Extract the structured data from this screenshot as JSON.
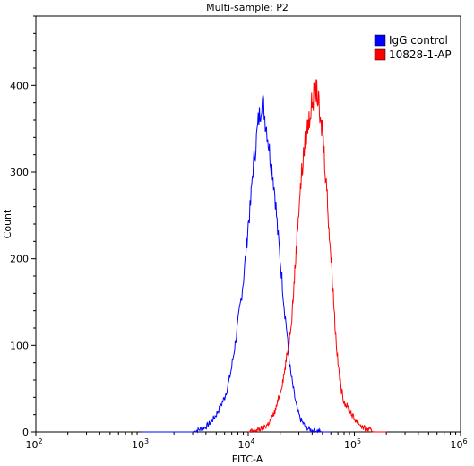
{
  "chart_data": {
    "type": "line",
    "title": "Multi-sample: P2",
    "xlabel": "FITC-A",
    "ylabel": "Count",
    "x_scale": "log",
    "xlim": [
      100,
      1000000
    ],
    "ylim": [
      0,
      480
    ],
    "x_ticks": [
      {
        "value": 100,
        "base": "10",
        "exp": "2"
      },
      {
        "value": 1000,
        "base": "10",
        "exp": "3"
      },
      {
        "value": 10000,
        "base": "10",
        "exp": "4"
      },
      {
        "value": 100000,
        "base": "10",
        "exp": "5"
      },
      {
        "value": 1000000,
        "base": "10",
        "exp": "6"
      }
    ],
    "y_ticks": [
      0,
      100,
      200,
      300,
      400
    ],
    "legend_position": "top-right",
    "grid": false,
    "series": [
      {
        "name": "IgG control",
        "color": "#0000ff",
        "x": [
          1000,
          3000,
          3500,
          4000,
          4500,
          5000,
          5500,
          6000,
          6500,
          7000,
          7500,
          8000,
          8500,
          9000,
          9500,
          10000,
          10500,
          11000,
          11500,
          12000,
          12500,
          13000,
          13500,
          14000,
          14500,
          15000,
          16000,
          17000,
          18000,
          19000,
          20000,
          21000,
          22000,
          23000,
          24000,
          25000,
          27000,
          29000,
          31000,
          33000,
          35000,
          40000,
          50000,
          60000
        ],
        "y": [
          0,
          0,
          3,
          6,
          12,
          20,
          30,
          40,
          55,
          75,
          100,
          125,
          150,
          175,
          205,
          240,
          260,
          300,
          320,
          340,
          360,
          370,
          385,
          375,
          360,
          350,
          320,
          300,
          270,
          230,
          200,
          170,
          140,
          120,
          90,
          70,
          45,
          25,
          15,
          10,
          5,
          2,
          0,
          0
        ]
      },
      {
        "name": "10828-1-AP",
        "color": "#ff0000",
        "x": [
          10000,
          12000,
          14000,
          15000,
          16000,
          17000,
          18000,
          19000,
          20000,
          22000,
          24000,
          26000,
          28000,
          30000,
          32000,
          34000,
          36000,
          38000,
          40000,
          42000,
          44000,
          46000,
          48000,
          50000,
          52000,
          55000,
          58000,
          62000,
          66000,
          70000,
          75000,
          80000,
          90000,
          100000,
          110000,
          120000,
          140000,
          160000,
          200000
        ],
        "y": [
          0,
          2,
          5,
          8,
          12,
          18,
          25,
          35,
          45,
          70,
          100,
          140,
          200,
          260,
          300,
          330,
          350,
          365,
          380,
          390,
          395,
          380,
          350,
          355,
          320,
          280,
          230,
          180,
          120,
          80,
          50,
          35,
          25,
          15,
          10,
          5,
          2,
          0,
          0
        ]
      }
    ]
  }
}
